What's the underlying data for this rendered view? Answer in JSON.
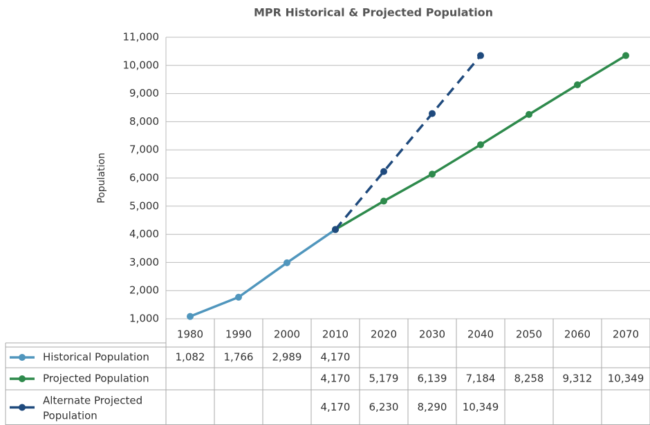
{
  "chart_data": {
    "type": "line",
    "title": "MPR Historical & Projected Population",
    "y_label": "Population",
    "categories": [
      "1980",
      "1990",
      "2000",
      "2010",
      "2020",
      "2030",
      "2040",
      "2050",
      "2060",
      "2070"
    ],
    "ylim": [
      1000,
      11000
    ],
    "yticks": [
      {
        "value": 1000,
        "label": "1,000"
      },
      {
        "value": 2000,
        "label": "2,000"
      },
      {
        "value": 3000,
        "label": "3,000"
      },
      {
        "value": 4000,
        "label": "4,000"
      },
      {
        "value": 5000,
        "label": "5,000"
      },
      {
        "value": 6000,
        "label": "6,000"
      },
      {
        "value": 7000,
        "label": "7,000"
      },
      {
        "value": 8000,
        "label": "8,000"
      },
      {
        "value": 9000,
        "label": "9,000"
      },
      {
        "value": 10000,
        "label": "10,000"
      },
      {
        "value": 11000,
        "label": "11,000"
      }
    ],
    "grid": true,
    "series": [
      {
        "name": "Historical Population",
        "color": "#5096bd",
        "dash": false,
        "values": [
          1082,
          1766,
          2989,
          4170,
          null,
          null,
          null,
          null,
          null,
          null
        ],
        "value_labels": [
          "1,082",
          "1,766",
          "2,989",
          "4,170",
          null,
          null,
          null,
          null,
          null,
          null
        ]
      },
      {
        "name": "Projected Population",
        "color": "#2e8a4c",
        "dash": false,
        "values": [
          null,
          null,
          null,
          4170,
          5179,
          6139,
          7184,
          8258,
          9312,
          10349
        ],
        "value_labels": [
          null,
          null,
          null,
          "4,170",
          "5,179",
          "6,139",
          "7,184",
          "8,258",
          "9,312",
          "10,349"
        ]
      },
      {
        "name": "Alternate Projected Population",
        "color": "#1f4a7d",
        "dash": true,
        "values": [
          null,
          null,
          null,
          4170,
          6230,
          8290,
          10349,
          null,
          null,
          null
        ],
        "value_labels": [
          null,
          null,
          null,
          "4,170",
          "6,230",
          "8,290",
          "10,349",
          null,
          null,
          null
        ]
      }
    ]
  }
}
